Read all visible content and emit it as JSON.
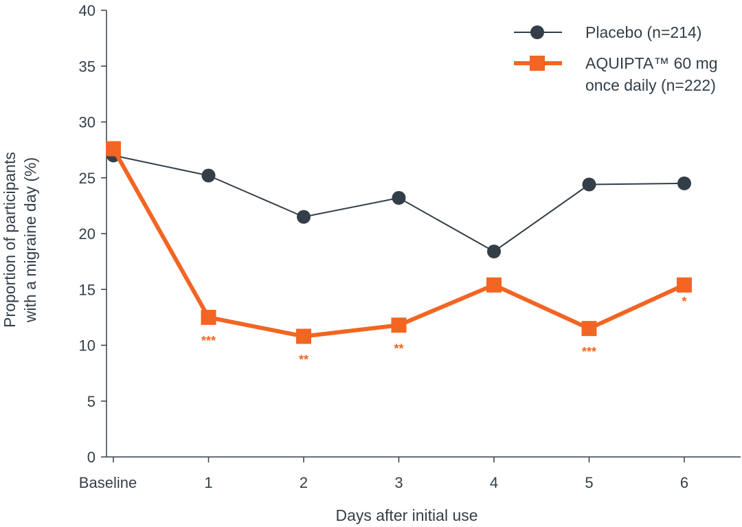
{
  "chart_data": {
    "type": "line",
    "categories": [
      "Baseline",
      "1",
      "2",
      "3",
      "4",
      "5",
      "6"
    ],
    "xlabel": "Days after initial use",
    "ylabel_lines": [
      "Proportion of participants",
      "with a migraine day (%)"
    ],
    "ylim": [
      0,
      40
    ],
    "yticks": [
      0,
      5,
      10,
      15,
      20,
      25,
      30,
      35,
      40
    ],
    "grid": false,
    "legend_position": "top-right",
    "series": [
      {
        "name": "Placebo (n=214)",
        "label_lines": [
          "Placebo (n=214)"
        ],
        "values": [
          27.0,
          25.2,
          21.5,
          23.2,
          18.4,
          24.4,
          24.5
        ],
        "color": "#333e48",
        "marker": "circle",
        "significance": [
          "",
          "",
          "",
          "",
          "",
          "",
          ""
        ]
      },
      {
        "name": "AQUIPTA™ 60 mg once daily (n=222)",
        "label_lines": [
          "AQUIPTA™ 60 mg",
          "once daily (n=222)"
        ],
        "values": [
          27.6,
          12.5,
          10.8,
          11.8,
          15.4,
          11.5,
          15.4
        ],
        "color": "#f26522",
        "marker": "square",
        "significance": [
          "",
          "***",
          "**",
          "**",
          "",
          "***",
          "*"
        ]
      }
    ]
  }
}
